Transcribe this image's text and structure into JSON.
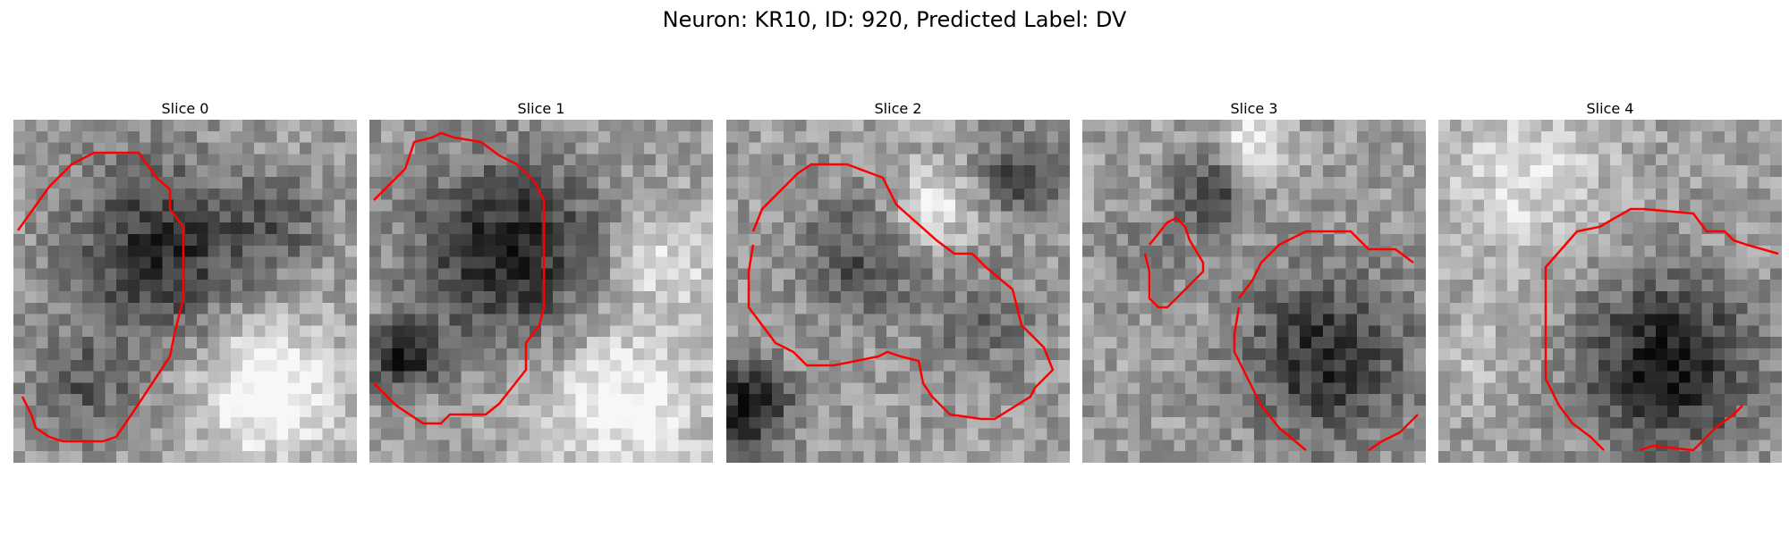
{
  "figure": {
    "title": "Neuron: KR10, ID: 920, Predicted Label: DV",
    "contour_color": "#ff0000",
    "colormap": "gray"
  },
  "panels": [
    {
      "title": "Slice 0"
    },
    {
      "title": "Slice 1"
    },
    {
      "title": "Slice 2"
    },
    {
      "title": "Slice 3"
    },
    {
      "title": "Slice 4"
    }
  ]
}
